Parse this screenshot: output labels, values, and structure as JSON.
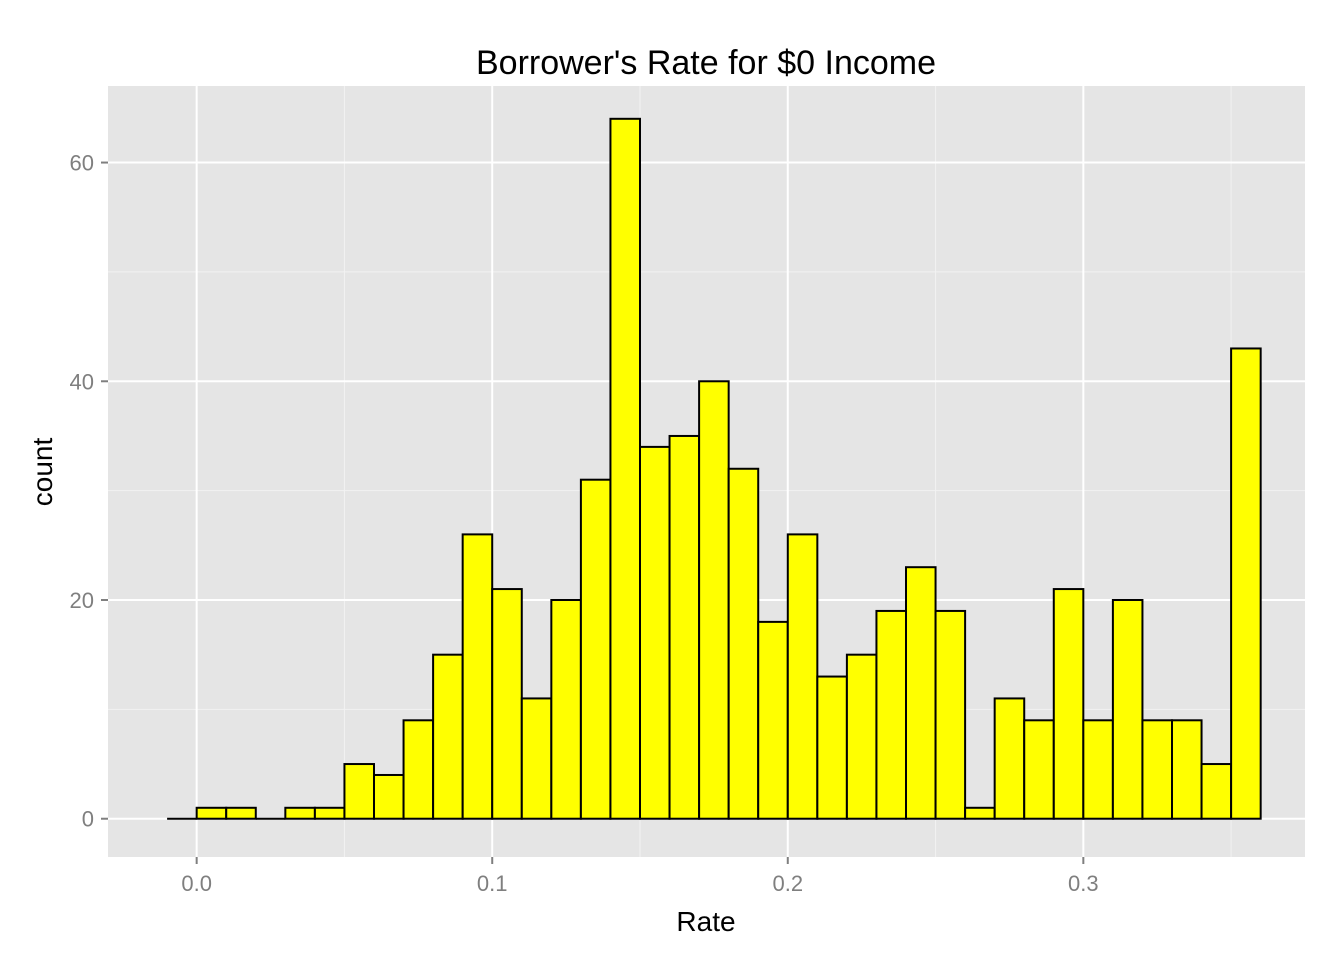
{
  "chart_data": {
    "type": "bar",
    "title": "Borrower's Rate for $0 Income",
    "xlabel": "Rate",
    "ylabel": "count",
    "xlim": [
      -0.03,
      0.375
    ],
    "ylim": [
      -3.5,
      67
    ],
    "x_ticks": [
      0.0,
      0.1,
      0.2,
      0.3
    ],
    "x_tick_labels": [
      "0.0",
      "0.1",
      "0.2",
      "0.3"
    ],
    "y_ticks": [
      0,
      20,
      40,
      60
    ],
    "y_tick_labels": [
      "0",
      "20",
      "40",
      "60"
    ],
    "grid": true,
    "legend": "none",
    "bin_width": 0.01,
    "bin_starts": [
      -0.01,
      0.0,
      0.01,
      0.02,
      0.03,
      0.04,
      0.05,
      0.06,
      0.07,
      0.08,
      0.09,
      0.1,
      0.11,
      0.12,
      0.13,
      0.14,
      0.15,
      0.16,
      0.17,
      0.18,
      0.19,
      0.2,
      0.21,
      0.22,
      0.23,
      0.24,
      0.25,
      0.26,
      0.27,
      0.28,
      0.29,
      0.3,
      0.31,
      0.32,
      0.33,
      0.34,
      0.35
    ],
    "values": [
      0,
      1,
      1,
      0,
      1,
      1,
      5,
      4,
      9,
      15,
      26,
      21,
      11,
      20,
      31,
      64,
      34,
      35,
      40,
      32,
      18,
      26,
      13,
      15,
      19,
      23,
      19,
      1,
      11,
      9,
      21,
      9,
      20,
      9,
      9,
      5,
      43
    ],
    "colors": {
      "bar_fill": "#ffff00",
      "bar_stroke": "#000000",
      "panel_background": "#e5e5e5",
      "grid_major": "#ffffff",
      "grid_minor": "#f2f2f2",
      "tick_label": "#7f7f7f"
    }
  }
}
